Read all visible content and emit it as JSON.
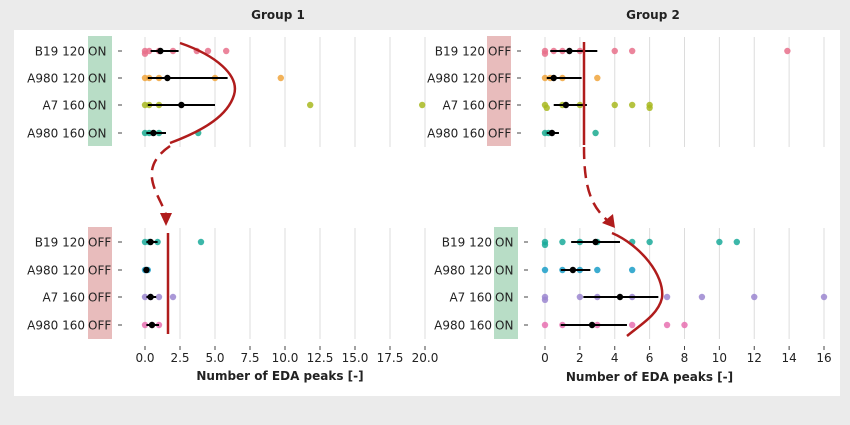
{
  "chart_data": [
    {
      "type": "scatter",
      "group_title": "Group 1",
      "panel": "top-left",
      "condition_text": "ON",
      "condition_color": "#b8ddc6",
      "categories": [
        "B19 120",
        "A980 120",
        "A7 160",
        "A980 160"
      ],
      "xlim": [
        0,
        20
      ],
      "xticks": [],
      "points": [
        [
          0,
          0,
          "#e8708b"
        ],
        [
          0,
          0.1,
          "#e8708b"
        ],
        [
          0.3,
          0,
          "#e8708b"
        ],
        [
          1,
          0,
          "#e8708b"
        ],
        [
          2,
          0,
          "#e8708b"
        ],
        [
          3.7,
          0,
          "#e8708b"
        ],
        [
          4.5,
          0,
          "#e8708b"
        ],
        [
          5.8,
          0,
          "#e8708b"
        ],
        [
          0,
          1,
          "#f0a43c"
        ],
        [
          0.3,
          1,
          "#f0a43c"
        ],
        [
          1,
          1,
          "#f0a43c"
        ],
        [
          5,
          1,
          "#f0a43c"
        ],
        [
          9.7,
          1,
          "#f0a43c"
        ],
        [
          0,
          2,
          "#a8b820"
        ],
        [
          0.3,
          2,
          "#a8b820"
        ],
        [
          1,
          2,
          "#a8b820"
        ],
        [
          11.8,
          2,
          "#a8b820"
        ],
        [
          19.8,
          2,
          "#a8b820"
        ],
        [
          0,
          3,
          "#1aaa8f"
        ],
        [
          0.3,
          3,
          "#1aaa8f"
        ],
        [
          1,
          3,
          "#1aaa8f"
        ],
        [
          3.8,
          3,
          "#1aaa8f"
        ]
      ],
      "summary": [
        [
          1.1,
          0.4,
          2.4
        ],
        [
          1.6,
          0.2,
          5.9
        ],
        [
          2.6,
          0.2,
          5.0
        ],
        [
          0.6,
          0.1,
          1.5
        ]
      ]
    },
    {
      "type": "scatter",
      "group_title": "Group 2",
      "panel": "top-right",
      "condition_text": "OFF",
      "condition_color": "#e8bcbc",
      "categories": [
        "B19 120",
        "A980 120",
        "A7 160",
        "A980 160"
      ],
      "xlim": [
        0,
        16
      ],
      "xticks": [],
      "points": [
        [
          0,
          0,
          "#e8708b"
        ],
        [
          0,
          0.1,
          "#e8708b"
        ],
        [
          0.5,
          0,
          "#e8708b"
        ],
        [
          1,
          0,
          "#e8708b"
        ],
        [
          2,
          0,
          "#e8708b"
        ],
        [
          4,
          0,
          "#e8708b"
        ],
        [
          5,
          0,
          "#e8708b"
        ],
        [
          13.9,
          0,
          "#e8708b"
        ],
        [
          0,
          1,
          "#f0a43c"
        ],
        [
          0.3,
          1,
          "#f0a43c"
        ],
        [
          1,
          1,
          "#f0a43c"
        ],
        [
          3,
          1,
          "#f0a43c"
        ],
        [
          0,
          2,
          "#a8b820"
        ],
        [
          0.1,
          2.1,
          "#a8b820"
        ],
        [
          1,
          2,
          "#a8b820"
        ],
        [
          2,
          2,
          "#a8b820"
        ],
        [
          4,
          2,
          "#a8b820"
        ],
        [
          5,
          2,
          "#a8b820"
        ],
        [
          6,
          2,
          "#a8b820"
        ],
        [
          6,
          2.1,
          "#a8b820"
        ],
        [
          0,
          3,
          "#1aaa8f"
        ],
        [
          0.2,
          3,
          "#1aaa8f"
        ],
        [
          2.9,
          3,
          "#1aaa8f"
        ]
      ],
      "summary": [
        [
          1.4,
          0.3,
          3.0
        ],
        [
          0.5,
          0.1,
          2.1
        ],
        [
          1.2,
          0.5,
          2.4
        ],
        [
          0.4,
          0.1,
          0.8
        ]
      ]
    },
    {
      "type": "scatter",
      "panel": "bottom-left",
      "condition_text": "OFF",
      "condition_color": "#e8bcbc",
      "categories": [
        "B19 120",
        "A980 120",
        "A7 160",
        "A980 160"
      ],
      "xlabel": "Number of EDA peaks [-]",
      "xlim": [
        0,
        20
      ],
      "xticks": [
        0,
        2.5,
        5,
        7.5,
        10,
        12.5,
        15,
        17.5,
        20
      ],
      "xtick_labels": [
        "0.0",
        "2.5",
        "5.0",
        "7.5",
        "10.0",
        "12.5",
        "15.0",
        "17.5",
        "20.0"
      ],
      "points": [
        [
          0,
          0,
          "#1aaa9a"
        ],
        [
          0.3,
          0,
          "#1aaa9a"
        ],
        [
          0.9,
          0,
          "#1aaa9a"
        ],
        [
          4,
          0,
          "#1aaa9a"
        ],
        [
          0,
          1,
          "#1a9ec8"
        ],
        [
          0.2,
          1,
          "#1a9ec8"
        ],
        [
          0,
          2,
          "#9b86d0"
        ],
        [
          0.4,
          2,
          "#9b86d0"
        ],
        [
          1,
          2,
          "#9b86d0"
        ],
        [
          2,
          2,
          "#9b86d0"
        ],
        [
          0,
          3,
          "#e870b0"
        ],
        [
          0.5,
          3,
          "#e870b0"
        ],
        [
          1,
          3,
          "#e870b0"
        ]
      ],
      "summary": [
        [
          0.4,
          0.1,
          0.9
        ],
        [
          0.1,
          0.0,
          0.3
        ],
        [
          0.4,
          0.1,
          0.8
        ],
        [
          0.5,
          0.1,
          1.0
        ]
      ]
    },
    {
      "type": "scatter",
      "panel": "bottom-right",
      "condition_text": "ON",
      "condition_color": "#b8ddc6",
      "categories": [
        "B19 120",
        "A980 120",
        "A7 160",
        "A980 160"
      ],
      "xlabel": "Number of EDA peaks [-]",
      "xlim": [
        0,
        16
      ],
      "xticks": [
        0,
        2,
        4,
        6,
        8,
        10,
        12,
        14,
        16
      ],
      "xtick_labels": [
        "0",
        "2",
        "4",
        "6",
        "8",
        "10",
        "12",
        "14",
        "16"
      ],
      "points": [
        [
          0,
          0,
          "#1aaa9a"
        ],
        [
          0,
          0.1,
          "#1aaa9a"
        ],
        [
          1,
          0,
          "#1aaa9a"
        ],
        [
          2,
          0,
          "#1aaa9a"
        ],
        [
          3,
          0,
          "#1aaa9a"
        ],
        [
          5,
          0,
          "#1aaa9a"
        ],
        [
          6,
          0,
          "#1aaa9a"
        ],
        [
          10,
          0,
          "#1aaa9a"
        ],
        [
          11,
          0,
          "#1aaa9a"
        ],
        [
          0,
          1,
          "#1a9ec8"
        ],
        [
          1,
          1,
          "#1a9ec8"
        ],
        [
          2,
          1,
          "#1a9ec8"
        ],
        [
          3,
          1,
          "#1a9ec8"
        ],
        [
          5,
          1,
          "#1a9ec8"
        ],
        [
          0,
          2,
          "#9b86d0"
        ],
        [
          0,
          2.1,
          "#9b86d0"
        ],
        [
          2,
          2,
          "#9b86d0"
        ],
        [
          3,
          2,
          "#9b86d0"
        ],
        [
          5,
          2,
          "#9b86d0"
        ],
        [
          7,
          2,
          "#9b86d0"
        ],
        [
          9,
          2,
          "#9b86d0"
        ],
        [
          12,
          2,
          "#9b86d0"
        ],
        [
          16,
          2,
          "#9b86d0"
        ],
        [
          0,
          3,
          "#e870b0"
        ],
        [
          1,
          3,
          "#e870b0"
        ],
        [
          3,
          3,
          "#e870b0"
        ],
        [
          5,
          3,
          "#e870b0"
        ],
        [
          7,
          3,
          "#e870b0"
        ],
        [
          8,
          3,
          "#e870b0"
        ]
      ],
      "summary": [
        [
          2.9,
          1.5,
          4.3
        ],
        [
          1.6,
          0.9,
          2.6
        ],
        [
          4.3,
          2.2,
          6.5
        ],
        [
          2.7,
          0.9,
          4.7
        ]
      ]
    }
  ]
}
